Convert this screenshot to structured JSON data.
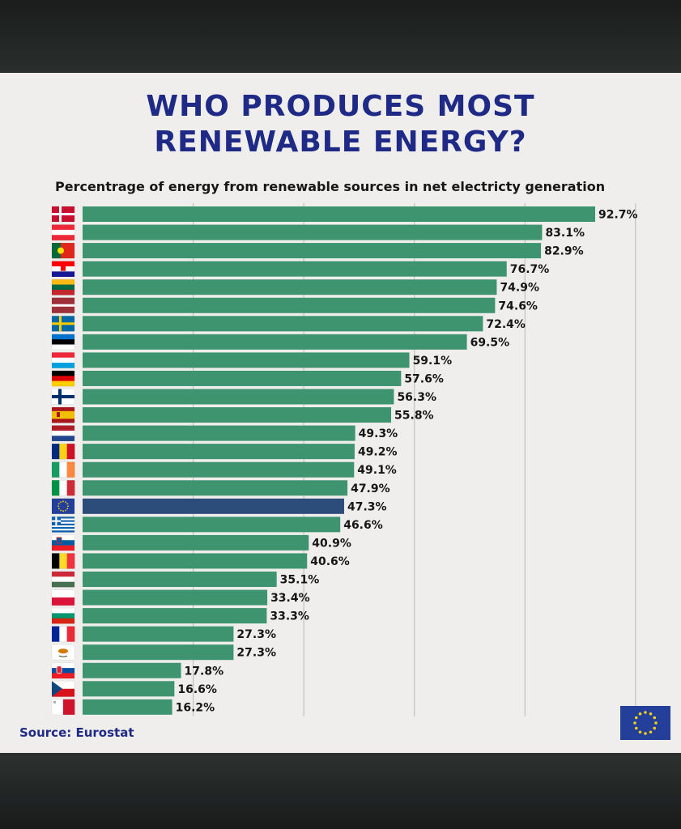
{
  "title_line1": "WHO PRODUCES MOST",
  "title_line2": "RENEWABLE ENERGY?",
  "subtitle": "Percentrage of energy from renewable sources in net electricty generation",
  "source": "Source: Eurostat",
  "colors": {
    "bar": "#3f9470",
    "highlight": "#2c4d79",
    "title": "#1f2a86",
    "background": "#efeeec",
    "eu_flag": "#233f9a",
    "eu_star": "#f7d117"
  },
  "chart_data": {
    "type": "bar",
    "orientation": "horizontal",
    "title": "WHO PRODUCES MOST RENEWABLE ENERGY?",
    "subtitle": "Percentrage of energy from renewable sources in net electricty generation",
    "xlabel": "",
    "ylabel": "",
    "xlim": [
      0,
      100
    ],
    "grid": true,
    "categories": [
      "Denmark",
      "Austria",
      "Portugal",
      "Croatia",
      "Lithuania",
      "Latvia",
      "Sweden",
      "Estonia",
      "Luxembourg",
      "Germany",
      "Finland",
      "Spain",
      "Netherlands",
      "Romania",
      "Ireland",
      "Italy",
      "EU",
      "Greece",
      "Slovenia",
      "Belgium",
      "Hungary",
      "Poland",
      "Bulgaria",
      "France",
      "Cyprus",
      "Slovakia",
      "Czechia",
      "Malta"
    ],
    "values": [
      92.7,
      83.1,
      82.9,
      76.7,
      74.9,
      74.6,
      72.4,
      69.5,
      59.1,
      57.6,
      56.3,
      55.8,
      49.3,
      49.2,
      49.1,
      47.9,
      47.3,
      46.6,
      40.9,
      40.6,
      35.1,
      33.4,
      33.3,
      27.3,
      27.3,
      17.8,
      16.6,
      16.2
    ],
    "labels": [
      "92.7%",
      "83.1%",
      "82.9%",
      "76.7%",
      "74.9%",
      "74.6%",
      "72.4%",
      "69.5%",
      "59.1%",
      "57.6%",
      "56.3%",
      "55.8%",
      "49.3%",
      "49.2%",
      "49.1%",
      "47.9%",
      "47.3%",
      "46.6%",
      "40.9%",
      "40.6%",
      "35.1%",
      "33.4%",
      "33.3%",
      "27.3%",
      "27.3%",
      "17.8%",
      "16.6%",
      "16.2%"
    ],
    "highlight": "EU"
  }
}
